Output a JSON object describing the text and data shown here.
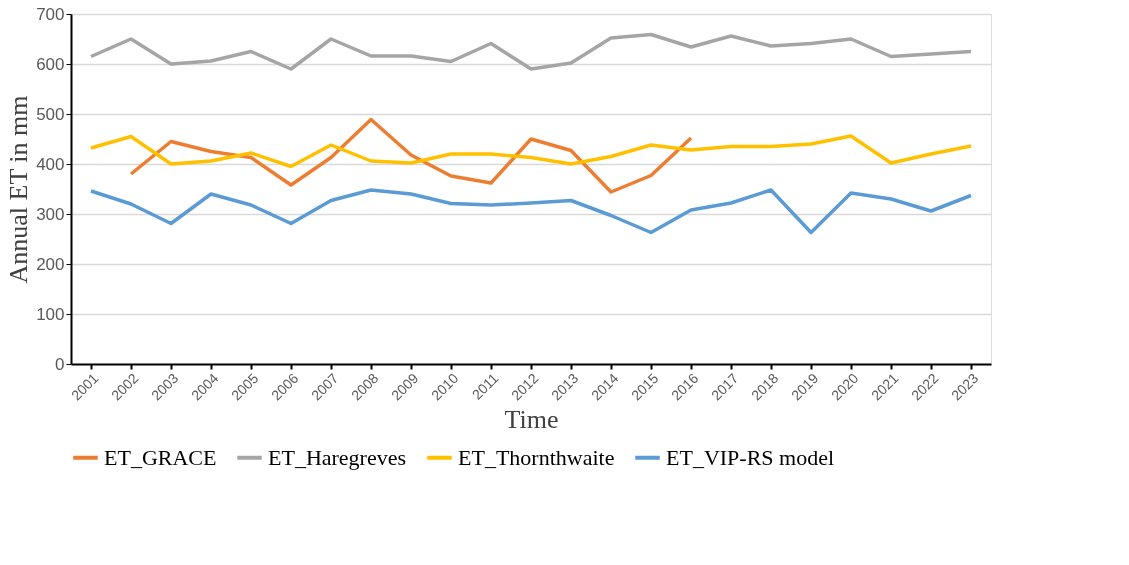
{
  "chart_data": {
    "type": "line",
    "xlabel": "Time",
    "ylabel": "Annual  ET in mm",
    "categories": [
      "2001",
      "2002",
      "2003",
      "2004",
      "2005",
      "2006",
      "2007",
      "2008",
      "2009",
      "2010",
      "2011",
      "2012",
      "2013",
      "2014",
      "2015",
      "2016",
      "2017",
      "2018",
      "2019",
      "2020",
      "2021",
      "2022",
      "2023"
    ],
    "ylim": [
      0,
      700
    ],
    "yticks": [
      0,
      100,
      200,
      300,
      400,
      500,
      600,
      700
    ],
    "grid": "y",
    "legend": "bottom",
    "marker": "none",
    "line_style": "solid",
    "series": [
      {
        "name": "ET_GRACE",
        "color": "#ed7d31",
        "values": [
          null,
          380,
          445,
          425,
          413,
          358,
          413,
          489,
          418,
          376,
          362,
          450,
          427,
          344,
          377,
          452,
          null,
          null,
          null,
          null,
          null,
          null,
          null
        ]
      },
      {
        "name": "ET_Haregreves",
        "color": "#a5a5a5",
        "values": [
          615,
          650,
          600,
          606,
          625,
          590,
          650,
          616,
          616,
          605,
          641,
          590,
          602,
          652,
          659,
          634,
          656,
          636,
          641,
          650,
          615,
          620,
          625
        ]
      },
      {
        "name": "ET_Thornthwaite",
        "color": "#ffc000",
        "values": [
          432,
          455,
          400,
          406,
          422,
          395,
          438,
          406,
          402,
          420,
          420,
          413,
          400,
          415,
          438,
          428,
          435,
          435,
          440,
          456,
          402,
          420,
          436
        ]
      },
      {
        "name": "ET_VIP-RS model",
        "color": "#5b9bd5",
        "values": [
          346,
          320,
          281,
          340,
          318,
          281,
          327,
          348,
          340,
          321,
          318,
          322,
          327,
          297,
          263,
          308,
          322,
          348,
          263,
          342,
          330,
          306,
          337
        ]
      }
    ]
  }
}
